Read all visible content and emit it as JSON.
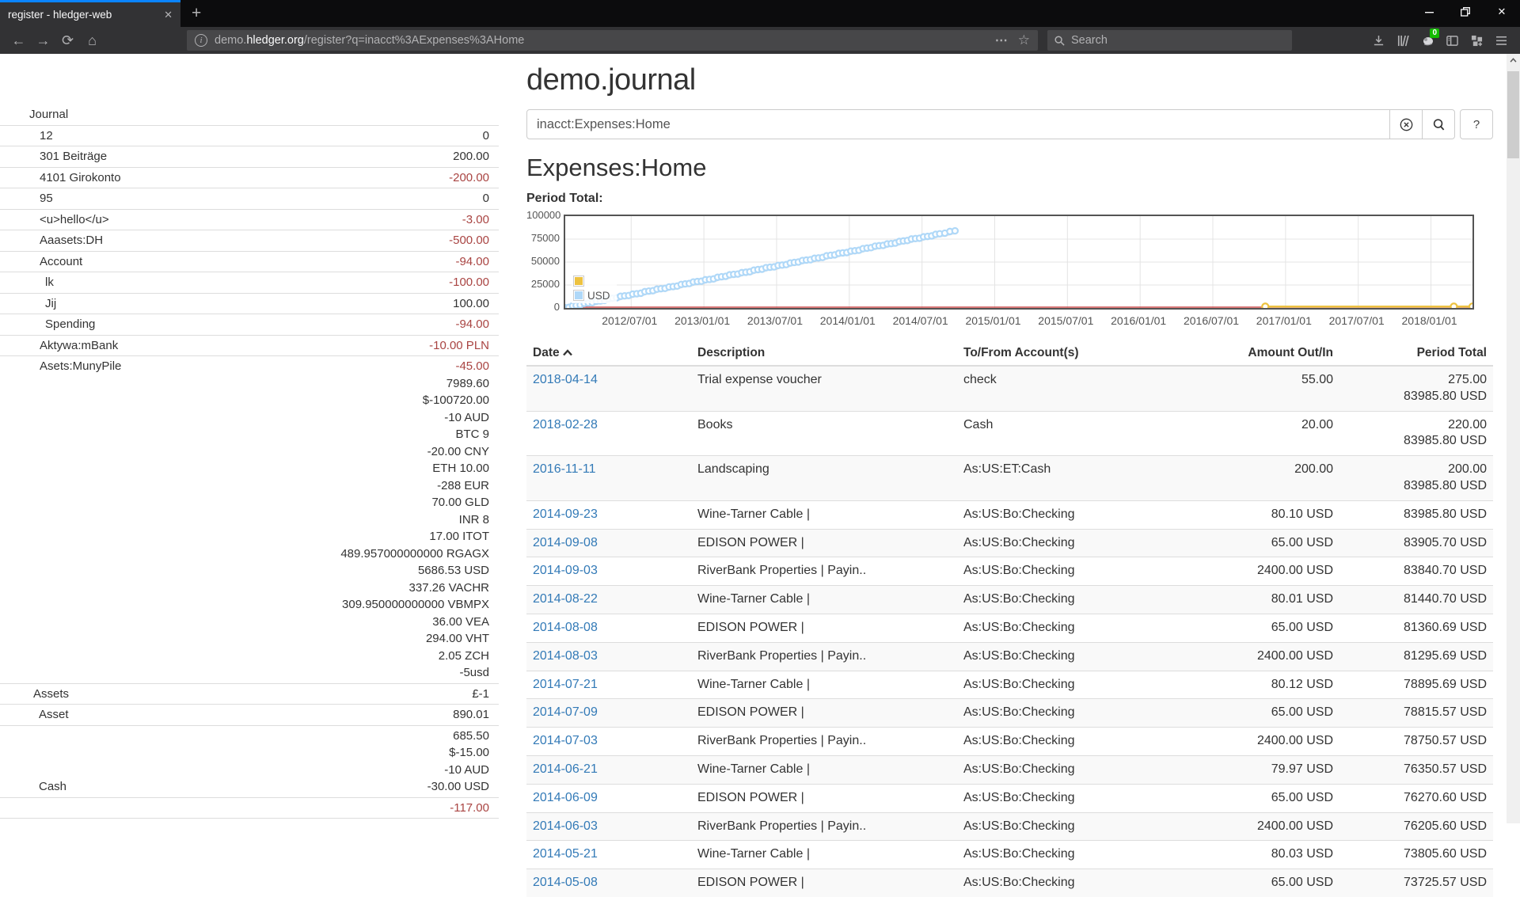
{
  "browser": {
    "tab_title": "register - hledger-web",
    "url": {
      "subdomain": "demo.",
      "domain": "hledger.org",
      "path": "/register?q=inacct%3AExpenses%3AHome"
    },
    "search_placeholder": "Search",
    "extension_badge": "0",
    "glyphs": {
      "close_tab": "✕",
      "new_tab": "+",
      "back": "←",
      "forward": "→",
      "reload": "⟳",
      "home": "⌂",
      "info": "i",
      "page_actions": "⋯",
      "bookmark_star": "☆",
      "minimize": "—",
      "close_window": "✕"
    }
  },
  "page": {
    "title": "demo.journal",
    "query_value": "inacct:Expenses:Home",
    "help_button_label": "?",
    "account_heading": "Expenses:Home",
    "chart_label": "Period Total:"
  },
  "sidebar": {
    "rows": [
      {
        "label": "Journal",
        "indent": 0,
        "lines": []
      },
      {
        "label": "12",
        "indent": 1,
        "lines": [
          {
            "t": "0"
          }
        ]
      },
      {
        "label": "301 Beiträge",
        "indent": 1,
        "lines": [
          {
            "t": "200.00"
          }
        ]
      },
      {
        "label": "4101 Girokonto",
        "indent": 1,
        "lines": [
          {
            "t": "-200.00",
            "neg": true
          }
        ]
      },
      {
        "label": "95",
        "indent": 1,
        "lines": [
          {
            "t": "0"
          }
        ]
      },
      {
        "label": "<u>hello</u>",
        "indent": 1,
        "lines": [
          {
            "t": "-3.00",
            "neg": true
          }
        ]
      },
      {
        "label": "Aaasets:DH",
        "indent": 1,
        "lines": [
          {
            "t": "-500.00",
            "neg": true
          }
        ]
      },
      {
        "label": "Account",
        "indent": 1,
        "lines": [
          {
            "t": "-94.00",
            "neg": true
          }
        ]
      },
      {
        "label": "lk",
        "indent": 2,
        "lines": [
          {
            "t": "-100.00",
            "neg": true
          }
        ]
      },
      {
        "label": "Jij",
        "indent": 2,
        "lines": [
          {
            "t": "100.00"
          }
        ]
      },
      {
        "label": "Spending",
        "indent": 2,
        "lines": [
          {
            "t": "-94.00",
            "neg": true
          }
        ]
      },
      {
        "label": "Aktywa:mBank",
        "indent": 1,
        "lines": [
          {
            "t": "-10.00 PLN",
            "neg": true
          }
        ]
      },
      {
        "label": "Asets:MunyPile",
        "indent": 1,
        "valign": "top",
        "lines": [
          {
            "t": "-45.00",
            "neg": true
          },
          {
            "t": "7989.60"
          },
          {
            "t": "$-100720.00"
          },
          {
            "t": "-10 AUD"
          },
          {
            "t": "BTC 9"
          },
          {
            "t": "-20.00 CNY"
          },
          {
            "t": "ETH 10.00"
          },
          {
            "t": "-288 EUR"
          },
          {
            "t": "70.00 GLD"
          },
          {
            "t": "INR 8"
          },
          {
            "t": "17.00 ITOT"
          },
          {
            "t": "489.957000000000 RGAGX"
          },
          {
            "t": "5686.53 USD"
          },
          {
            "t": "337.26 VACHR"
          },
          {
            "t": "309.950000000000 VBMPX"
          },
          {
            "t": "36.00 VEA"
          },
          {
            "t": "294.00 VHT"
          },
          {
            "t": "2.05 ZCH"
          },
          {
            "t": "-5usd"
          }
        ]
      },
      {
        "label": "Assets",
        "indent": 3,
        "lines": [
          {
            "t": "£-1"
          }
        ]
      },
      {
        "label": "Asset",
        "indent": 4,
        "lines": [
          {
            "t": "890.01"
          }
        ]
      },
      {
        "label": "Cash",
        "indent": 4,
        "valign": "bottom",
        "lines": [
          {
            "t": "685.50"
          },
          {
            "t": "$-15.00"
          },
          {
            "t": "-10 AUD"
          },
          {
            "t": "-30.00 USD"
          }
        ]
      },
      {
        "label": "",
        "indent": 4,
        "lines": [
          {
            "t": "-117.00",
            "neg": true
          }
        ]
      }
    ]
  },
  "register": {
    "columns": {
      "date": "Date",
      "desc": "Description",
      "acct": "To/From Account(s)",
      "amount": "Amount Out/In",
      "total": "Period Total"
    },
    "rows": [
      {
        "date": "2018-04-14",
        "desc": "Trial expense voucher",
        "acct": "check",
        "amount": "55.00",
        "totals": [
          "275.00",
          "83985.80 USD"
        ]
      },
      {
        "date": "2018-02-28",
        "desc": "Books",
        "acct": "Cash",
        "amount": "20.00",
        "totals": [
          "220.00",
          "83985.80 USD"
        ]
      },
      {
        "date": "2016-11-11",
        "desc": "Landscaping",
        "acct": "As:US:ET:Cash",
        "amount": "200.00",
        "totals": [
          "200.00",
          "83985.80 USD"
        ]
      },
      {
        "date": "2014-09-23",
        "desc": "Wine-Tarner Cable |",
        "acct": "As:US:Bo:Checking",
        "amount": "80.10 USD",
        "totals": [
          "83985.80 USD"
        ]
      },
      {
        "date": "2014-09-08",
        "desc": "EDISON POWER |",
        "acct": "As:US:Bo:Checking",
        "amount": "65.00 USD",
        "totals": [
          "83905.70 USD"
        ]
      },
      {
        "date": "2014-09-03",
        "desc": "RiverBank Properties | Payin..",
        "acct": "As:US:Bo:Checking",
        "amount": "2400.00 USD",
        "totals": [
          "83840.70 USD"
        ]
      },
      {
        "date": "2014-08-22",
        "desc": "Wine-Tarner Cable |",
        "acct": "As:US:Bo:Checking",
        "amount": "80.01 USD",
        "totals": [
          "81440.70 USD"
        ]
      },
      {
        "date": "2014-08-08",
        "desc": "EDISON POWER |",
        "acct": "As:US:Bo:Checking",
        "amount": "65.00 USD",
        "totals": [
          "81360.69 USD"
        ]
      },
      {
        "date": "2014-08-03",
        "desc": "RiverBank Properties | Payin..",
        "acct": "As:US:Bo:Checking",
        "amount": "2400.00 USD",
        "totals": [
          "81295.69 USD"
        ]
      },
      {
        "date": "2014-07-21",
        "desc": "Wine-Tarner Cable |",
        "acct": "As:US:Bo:Checking",
        "amount": "80.12 USD",
        "totals": [
          "78895.69 USD"
        ]
      },
      {
        "date": "2014-07-09",
        "desc": "EDISON POWER |",
        "acct": "As:US:Bo:Checking",
        "amount": "65.00 USD",
        "totals": [
          "78815.57 USD"
        ]
      },
      {
        "date": "2014-07-03",
        "desc": "RiverBank Properties | Payin..",
        "acct": "As:US:Bo:Checking",
        "amount": "2400.00 USD",
        "totals": [
          "78750.57 USD"
        ]
      },
      {
        "date": "2014-06-21",
        "desc": "Wine-Tarner Cable |",
        "acct": "As:US:Bo:Checking",
        "amount": "79.97 USD",
        "totals": [
          "76350.57 USD"
        ]
      },
      {
        "date": "2014-06-09",
        "desc": "EDISON POWER |",
        "acct": "As:US:Bo:Checking",
        "amount": "65.00 USD",
        "totals": [
          "76270.60 USD"
        ]
      },
      {
        "date": "2014-06-03",
        "desc": "RiverBank Properties | Payin..",
        "acct": "As:US:Bo:Checking",
        "amount": "2400.00 USD",
        "totals": [
          "76205.60 USD"
        ]
      },
      {
        "date": "2014-05-21",
        "desc": "Wine-Tarner Cable |",
        "acct": "As:US:Bo:Checking",
        "amount": "80.03 USD",
        "totals": [
          "73805.60 USD"
        ]
      },
      {
        "date": "2014-05-08",
        "desc": "EDISON POWER |",
        "acct": "As:US:Bo:Checking",
        "amount": "65.00 USD",
        "totals": [
          "73725.57 USD"
        ]
      }
    ]
  },
  "chart_data": {
    "type": "line",
    "title": "Period Total:",
    "xlabel": "",
    "ylabel": "",
    "x_range": [
      "2012-01-18",
      "2018-04-14"
    ],
    "ylim": [
      0,
      100000
    ],
    "y_ticks": [
      0,
      25000,
      50000,
      75000,
      100000
    ],
    "x_ticks": [
      "2012/07/01",
      "2013/01/01",
      "2013/07/01",
      "2014/01/01",
      "2014/07/01",
      "2015/01/01",
      "2015/07/01",
      "2016/01/01",
      "2016/07/01",
      "2017/01/01",
      "2017/07/01",
      "2018/01/01"
    ],
    "grid": true,
    "legend_position": "inside-left",
    "legend": [
      {
        "label": "",
        "color": "#edc240"
      },
      {
        "label": "USD",
        "color": "#afd8f8"
      }
    ],
    "annotations": {
      "zero_line_color": "#cb4b4b"
    },
    "series": [
      {
        "name": "",
        "color": "#edc240",
        "points": [
          [
            "2016-11-11",
            200
          ],
          [
            "2018-02-28",
            220
          ],
          [
            "2018-04-14",
            275
          ]
        ]
      },
      {
        "name": "USD",
        "color": "#afd8f8",
        "points": [
          [
            "2012-01-18",
            300
          ],
          [
            "2012-02-15",
            2850
          ],
          [
            "2012-03-15",
            5400
          ],
          [
            "2012-04-15",
            7700
          ],
          [
            "2012-05-15",
            10600
          ],
          [
            "2012-06-15",
            13200
          ],
          [
            "2012-07-15",
            15500
          ],
          [
            "2012-08-15",
            18400
          ],
          [
            "2012-09-15",
            21000
          ],
          [
            "2012-10-15",
            23300
          ],
          [
            "2012-11-15",
            26200
          ],
          [
            "2012-12-15",
            28800
          ],
          [
            "2013-01-15",
            31100
          ],
          [
            "2013-02-15",
            34000
          ],
          [
            "2013-03-15",
            36600
          ],
          [
            "2013-04-15",
            38900
          ],
          [
            "2013-05-15",
            41800
          ],
          [
            "2013-06-15",
            44400
          ],
          [
            "2013-07-15",
            46700
          ],
          [
            "2013-08-15",
            49600
          ],
          [
            "2013-09-15",
            52200
          ],
          [
            "2013-10-15",
            54500
          ],
          [
            "2013-11-15",
            57400
          ],
          [
            "2013-12-15",
            60000
          ],
          [
            "2014-01-15",
            62300
          ],
          [
            "2014-02-15",
            65200
          ],
          [
            "2014-03-15",
            67800
          ],
          [
            "2014-04-15",
            70100
          ],
          [
            "2014-05-15",
            73000
          ],
          [
            "2014-06-15",
            75600
          ],
          [
            "2014-07-15",
            77900
          ],
          [
            "2014-08-15",
            80800
          ],
          [
            "2014-09-23",
            83985.8
          ]
        ]
      }
    ]
  }
}
